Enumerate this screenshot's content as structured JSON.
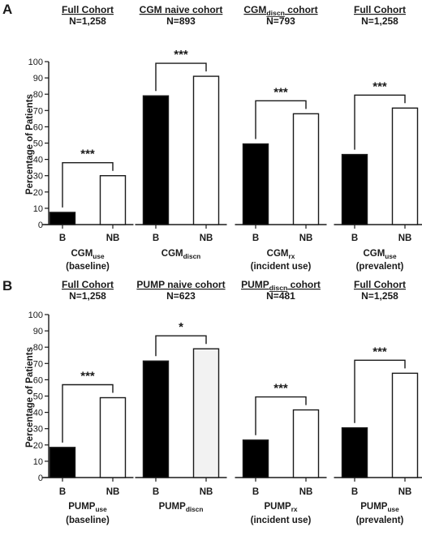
{
  "chart_data": [
    {
      "panel": "A",
      "type": "bar",
      "ylabel": "Percentage of Patients",
      "ylim": [
        0,
        100
      ],
      "yticks": [
        0,
        10,
        20,
        30,
        40,
        50,
        60,
        70,
        80,
        90,
        100
      ],
      "groups": [
        {
          "cohort_title": "Full Cohort",
          "cohort_n": "N=1,258",
          "categories": [
            "B",
            "NB"
          ],
          "values": [
            7.5,
            30
          ],
          "fills": [
            "#000000",
            "#ffffff"
          ],
          "significance": "***",
          "label_main": "CGM",
          "label_sub": "use",
          "label_line2": "(baseline)"
        },
        {
          "cohort_title": "CGM naive cohort",
          "cohort_n": "N=893",
          "categories": [
            "B",
            "NB"
          ],
          "values": [
            79,
            91
          ],
          "fills": [
            "#000000",
            "#ffffff"
          ],
          "significance": "***",
          "label_main": "CGM",
          "label_sub": "discn",
          "label_line2": ""
        },
        {
          "cohort_title": "CGM",
          "cohort_title_sub": "discn",
          "cohort_title_suffix": " cohort",
          "cohort_n": "N=793",
          "categories": [
            "B",
            "NB"
          ],
          "values": [
            49.5,
            68
          ],
          "fills": [
            "#000000",
            "#ffffff"
          ],
          "significance": "***",
          "label_main": "CGM",
          "label_sub": "rx",
          "label_line2": "(incident use)"
        },
        {
          "cohort_title": "Full Cohort",
          "cohort_n": "N=1,258",
          "categories": [
            "B",
            "NB"
          ],
          "values": [
            43,
            71.5
          ],
          "fills": [
            "#000000",
            "#ffffff"
          ],
          "significance": "***",
          "label_main": "CGM",
          "label_sub": "use",
          "label_line2": "(prevalent)"
        }
      ]
    },
    {
      "panel": "B",
      "type": "bar",
      "ylabel": "Percentage of Patients",
      "ylim": [
        0,
        100
      ],
      "yticks": [
        0,
        10,
        20,
        30,
        40,
        50,
        60,
        70,
        80,
        90,
        100
      ],
      "groups": [
        {
          "cohort_title": "Full Cohort",
          "cohort_n": "N=1,258",
          "categories": [
            "B",
            "NB"
          ],
          "values": [
            18.5,
            49
          ],
          "fills": [
            "#000000",
            "#ffffff"
          ],
          "significance": "***",
          "label_main": "PUMP",
          "label_sub": "use",
          "label_line2": "(baseline)"
        },
        {
          "cohort_title": "PUMP naive cohort",
          "cohort_n": "N=623",
          "categories": [
            "B",
            "NB"
          ],
          "values": [
            71.5,
            79
          ],
          "fills": [
            "#000000",
            "#f2f2f2"
          ],
          "significance": "*",
          "label_main": "PUMP",
          "label_sub": "discn",
          "label_line2": ""
        },
        {
          "cohort_title": "PUMP",
          "cohort_title_sub": "discn",
          "cohort_title_suffix": " cohort",
          "cohort_n": "N=481",
          "categories": [
            "B",
            "NB"
          ],
          "values": [
            23,
            41.5
          ],
          "fills": [
            "#000000",
            "#ffffff"
          ],
          "significance": "***",
          "label_main": "PUMP",
          "label_sub": "rx",
          "label_line2": "(incident use)"
        },
        {
          "cohort_title": "Full Cohort",
          "cohort_n": "N=1,258",
          "categories": [
            "B",
            "NB"
          ],
          "values": [
            30.5,
            64
          ],
          "fills": [
            "#000000",
            "#ffffff"
          ],
          "significance": "***",
          "label_main": "PUMP",
          "label_sub": "use",
          "label_line2": "(prevalent)"
        }
      ]
    }
  ]
}
